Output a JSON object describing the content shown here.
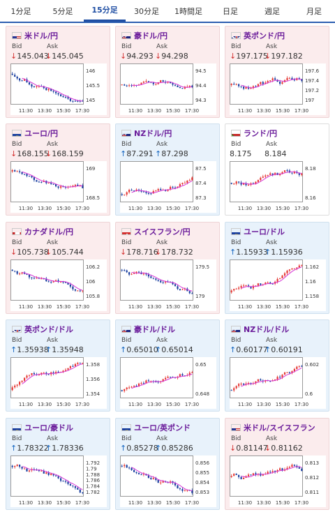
{
  "tabs": [
    {
      "label": "1分足",
      "active": false
    },
    {
      "label": "5分足",
      "active": false
    },
    {
      "label": "15分足",
      "active": true
    },
    {
      "label": "30分足",
      "active": false
    },
    {
      "label": "1時間足",
      "active": false
    },
    {
      "label": "日足",
      "active": false
    },
    {
      "label": "週足",
      "active": false
    },
    {
      "label": "月足",
      "active": false
    }
  ],
  "labels": {
    "bid": "Bid",
    "ask": "Ask"
  },
  "x_ticks": [
    "11:30",
    "13:30",
    "15:30",
    "17:30"
  ],
  "pairs": [
    {
      "name": "米ドル/円",
      "flag": "us",
      "trend": "down",
      "bid": "145.043",
      "ask": "145.045",
      "yticks": [
        "146",
        "145.5",
        "145"
      ],
      "seed": 1,
      "dir": -1
    },
    {
      "name": "豪ドル/円",
      "flag": "au",
      "trend": "down",
      "bid": "94.293",
      "ask": "94.298",
      "yticks": [
        "94.5",
        "94.4",
        "94.3"
      ],
      "seed": 2,
      "dir": 0
    },
    {
      "name": "英ポンド/円",
      "flag": "uk",
      "trend": "down",
      "bid": "197.175",
      "ask": "197.182",
      "yticks": [
        "197.6",
        "197.4",
        "197.2",
        "197"
      ],
      "seed": 3,
      "dir": 0
    },
    {
      "name": "ユーロ/円",
      "flag": "eu",
      "trend": "down",
      "bid": "168.155",
      "ask": "168.159",
      "yticks": [
        "169",
        "168.5"
      ],
      "seed": 4,
      "dir": -1
    },
    {
      "name": "NZドル/円",
      "flag": "nz",
      "trend": "up",
      "bid": "87.291",
      "ask": "87.298",
      "yticks": [
        "87.5",
        "87.4",
        "87.3"
      ],
      "seed": 5,
      "dir": 1
    },
    {
      "name": "ランド/円",
      "flag": "za",
      "trend": "flat",
      "bid": "8.175",
      "ask": "8.184",
      "yticks": [
        "8.18",
        "8.16"
      ],
      "seed": 6,
      "dir": 0
    },
    {
      "name": "カナダドル/円",
      "flag": "ca",
      "trend": "down",
      "bid": "105.738",
      "ask": "105.744",
      "yticks": [
        "106.2",
        "106",
        "105.8"
      ],
      "seed": 7,
      "dir": -1
    },
    {
      "name": "スイスフラン/円",
      "flag": "ch",
      "trend": "down",
      "bid": "178.716",
      "ask": "178.732",
      "yticks": [
        "179.5",
        "179"
      ],
      "seed": 8,
      "dir": -1
    },
    {
      "name": "ユーロ/ドル",
      "flag": "eu",
      "trend": "up",
      "bid": "1.15933",
      "ask": "1.15936",
      "yticks": [
        "1.162",
        "1.16",
        "1.158"
      ],
      "seed": 9,
      "dir": 1
    },
    {
      "name": "英ポンド/ドル",
      "flag": "uk",
      "trend": "up",
      "bid": "1.35938",
      "ask": "1.35948",
      "yticks": [
        "1.358",
        "1.356",
        "1.354"
      ],
      "seed": 10,
      "dir": 1
    },
    {
      "name": "豪ドル/ドル",
      "flag": "au",
      "trend": "up",
      "bid": "0.65010",
      "ask": "0.65014",
      "yticks": [
        "0.65",
        "0.648"
      ],
      "seed": 11,
      "dir": 1
    },
    {
      "name": "NZドル/ドル",
      "flag": "nz",
      "trend": "up",
      "bid": "0.60177",
      "ask": "0.60191",
      "yticks": [
        "0.602",
        "0.6"
      ],
      "seed": 12,
      "dir": 1
    },
    {
      "name": "ユーロ/豪ドル",
      "flag": "eu",
      "trend": "up",
      "bid": "1.78322",
      "ask": "1.78336",
      "yticks": [
        "1.792",
        "1.79",
        "1.788",
        "1.786",
        "1.784",
        "1.782"
      ],
      "seed": 13,
      "dir": -1
    },
    {
      "name": "ユーロ/英ポンド",
      "flag": "eu",
      "trend": "up",
      "bid": "0.85278",
      "ask": "0.85286",
      "yticks": [
        "0.856",
        "0.855",
        "0.854",
        "0.853"
      ],
      "seed": 14,
      "dir": -1
    },
    {
      "name": "米ドル/スイスフラン",
      "flag": "us",
      "trend": "down",
      "bid": "0.81147",
      "ask": "0.81162",
      "yticks": [
        "0.813",
        "0.812",
        "0.811"
      ],
      "seed": 15,
      "dir": 0
    }
  ],
  "colors": {
    "up_arrow": "#1565c0",
    "down_arrow": "#d32f2f",
    "bull": "#e53935",
    "bear": "#1a3fa0",
    "ma": "#d633d6",
    "pair_name": "#6a1b9a"
  }
}
